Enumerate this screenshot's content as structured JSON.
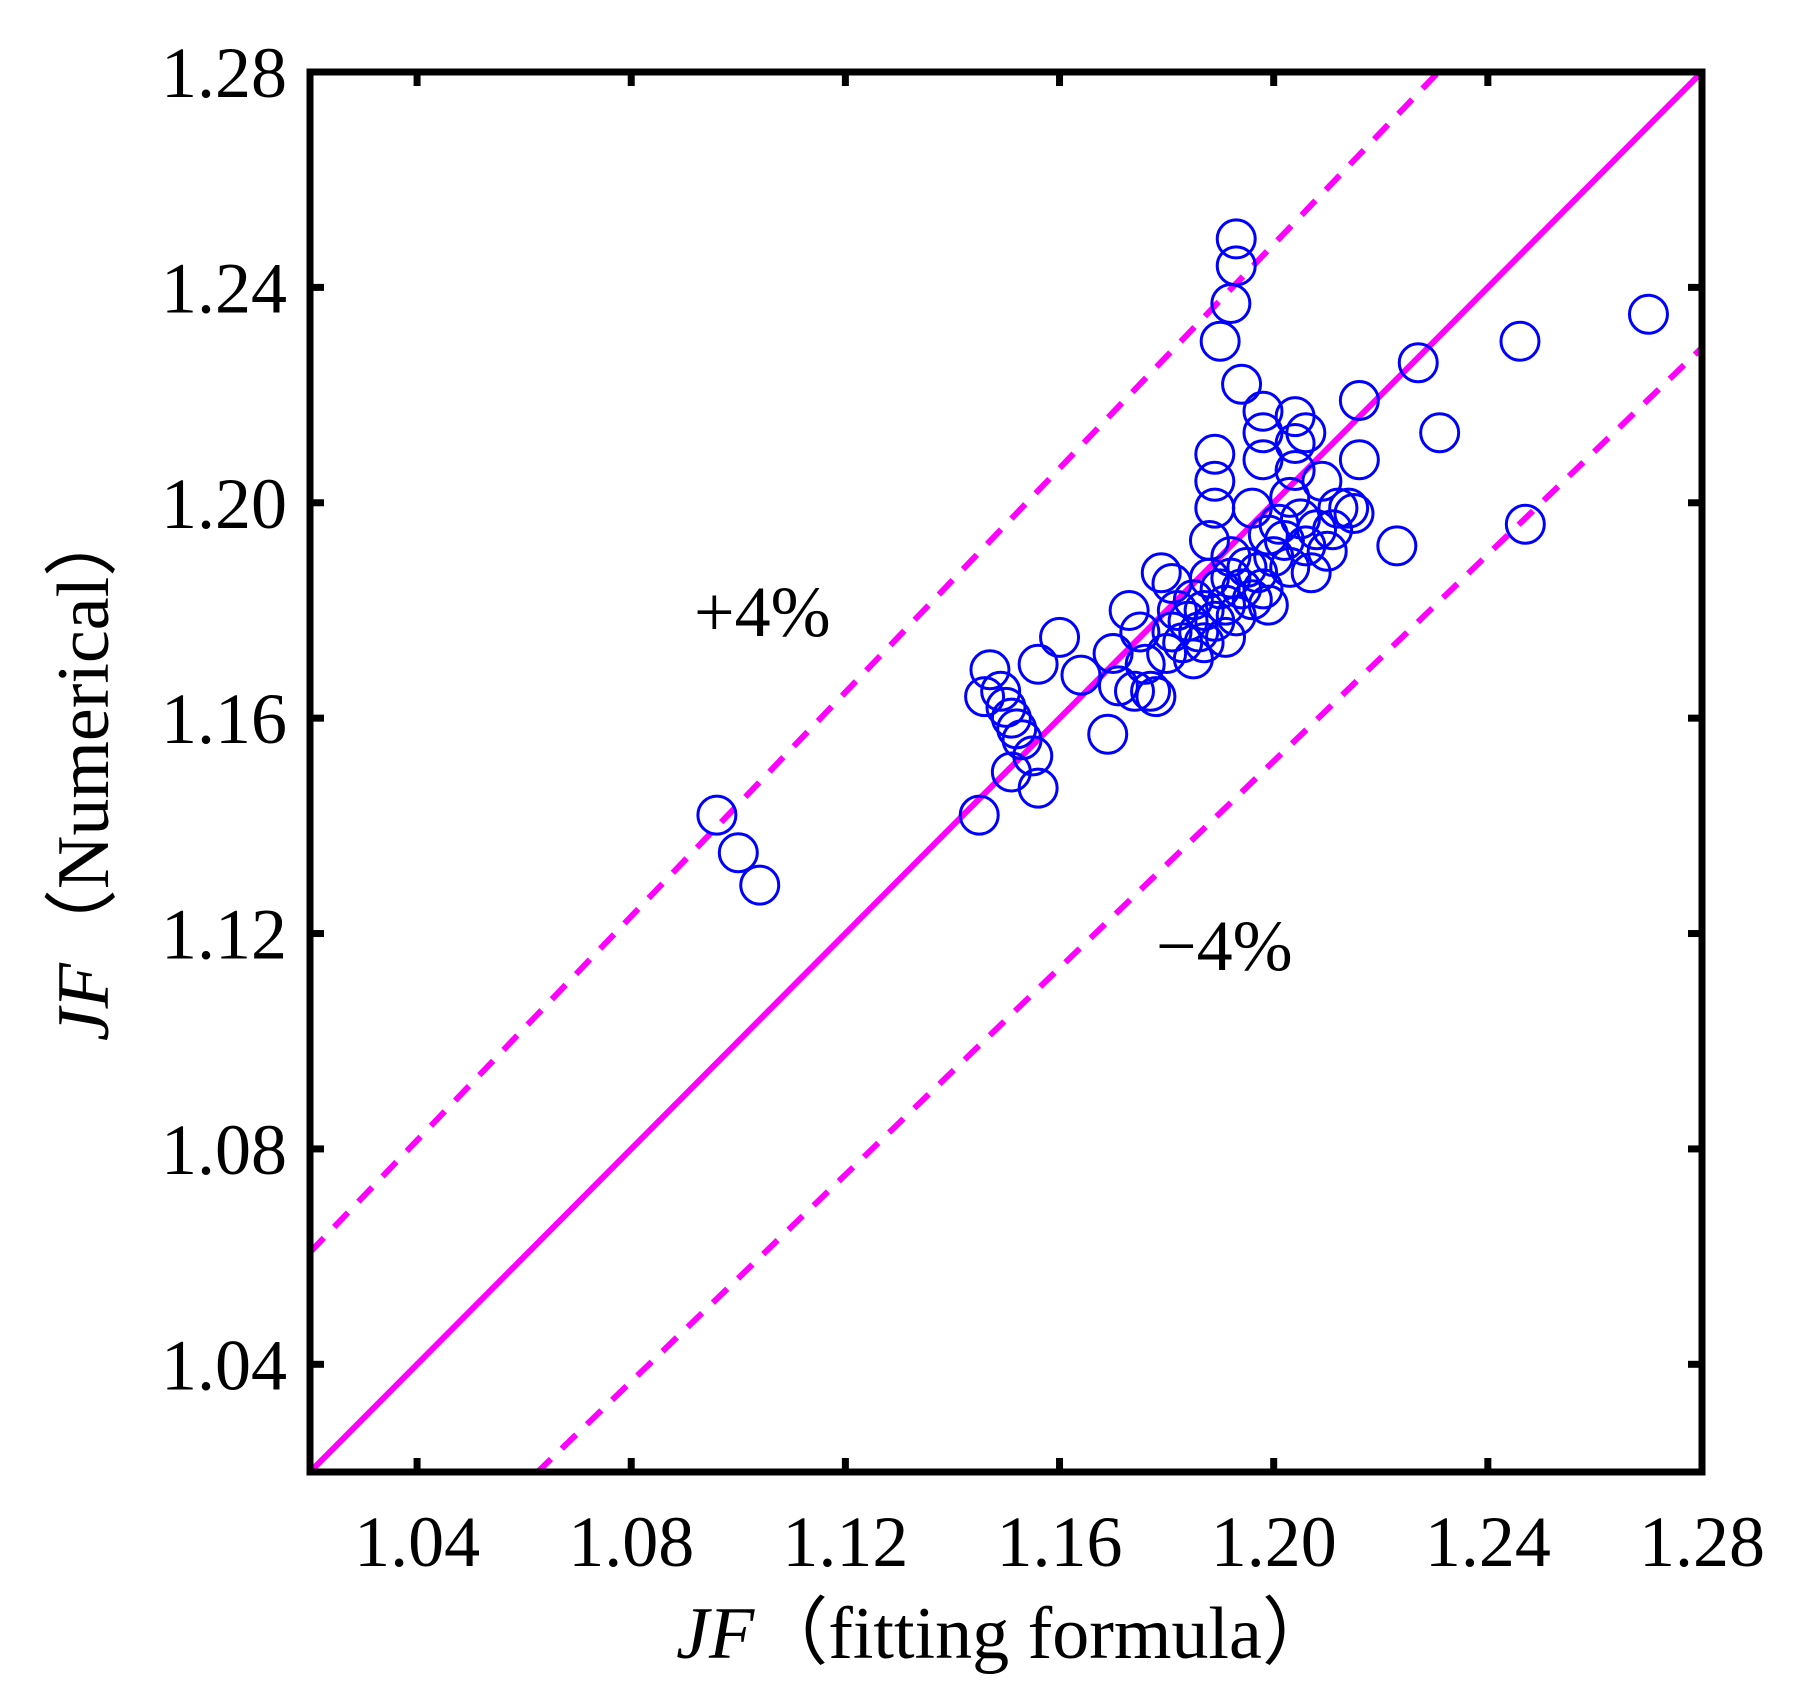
{
  "chart_data": {
    "type": "scatter",
    "xlabel": {
      "symbol": "JF",
      "text": "（fitting formula）"
    },
    "ylabel": {
      "symbol": "JF",
      "text": "（Numerical）"
    },
    "xlim": [
      1.02,
      1.28
    ],
    "ylim": [
      1.02,
      1.28
    ],
    "xticks": [
      1.04,
      1.08,
      1.12,
      1.16,
      1.2,
      1.24,
      1.28
    ],
    "yticks": [
      1.04,
      1.08,
      1.12,
      1.16,
      1.2,
      1.24,
      1.28
    ],
    "xtick_labels": [
      "1.04",
      "1.08",
      "1.12",
      "1.16",
      "1.20",
      "1.24",
      "1.28"
    ],
    "ytick_labels": [
      "1.04",
      "1.08",
      "1.12",
      "1.16",
      "1.20",
      "1.24",
      "1.28"
    ],
    "grid": false,
    "colors": {
      "points": "#0000ff",
      "lines": "#ff00ff",
      "axes": "#000000"
    },
    "reference_lines": [
      {
        "name": "identity",
        "style": "solid",
        "slope": 1.0
      },
      {
        "name": "plus-4-percent",
        "style": "dashed",
        "slope": 1.04
      },
      {
        "name": "minus-4-percent",
        "style": "dashed",
        "slope": 0.96
      }
    ],
    "annotations": {
      "plus": "+4%",
      "minus": "−4%"
    },
    "series": [
      {
        "name": "JF samples",
        "marker": "open-circle",
        "points": [
          [
            1.096,
            1.142
          ],
          [
            1.1,
            1.135
          ],
          [
            1.104,
            1.129
          ],
          [
            1.145,
            1.142
          ],
          [
            1.146,
            1.164
          ],
          [
            1.147,
            1.169
          ],
          [
            1.149,
            1.165
          ],
          [
            1.15,
            1.162
          ],
          [
            1.151,
            1.16
          ],
          [
            1.152,
            1.158
          ],
          [
            1.151,
            1.15
          ],
          [
            1.153,
            1.156
          ],
          [
            1.155,
            1.153
          ],
          [
            1.156,
            1.147
          ],
          [
            1.156,
            1.17
          ],
          [
            1.16,
            1.175
          ],
          [
            1.164,
            1.168
          ],
          [
            1.169,
            1.157
          ],
          [
            1.17,
            1.172
          ],
          [
            1.171,
            1.166
          ],
          [
            1.173,
            1.18
          ],
          [
            1.174,
            1.165
          ],
          [
            1.175,
            1.176
          ],
          [
            1.176,
            1.17
          ],
          [
            1.177,
            1.165
          ],
          [
            1.178,
            1.164
          ],
          [
            1.179,
            1.187
          ],
          [
            1.18,
            1.172
          ],
          [
            1.181,
            1.185
          ],
          [
            1.181,
            1.176
          ],
          [
            1.182,
            1.18
          ],
          [
            1.183,
            1.174
          ],
          [
            1.184,
            1.178
          ],
          [
            1.185,
            1.182
          ],
          [
            1.185,
            1.171
          ],
          [
            1.186,
            1.176
          ],
          [
            1.187,
            1.18
          ],
          [
            1.187,
            1.174
          ],
          [
            1.188,
            1.193
          ],
          [
            1.188,
            1.186
          ],
          [
            1.189,
            1.178
          ],
          [
            1.189,
            1.209
          ],
          [
            1.189,
            1.204
          ],
          [
            1.189,
            1.199
          ],
          [
            1.19,
            1.23
          ],
          [
            1.19,
            1.184
          ],
          [
            1.191,
            1.175
          ],
          [
            1.191,
            1.181
          ],
          [
            1.192,
            1.19
          ],
          [
            1.192,
            1.237
          ],
          [
            1.192,
            1.186
          ],
          [
            1.193,
            1.249
          ],
          [
            1.193,
            1.244
          ],
          [
            1.193,
            1.179
          ],
          [
            1.194,
            1.222
          ],
          [
            1.194,
            1.184
          ],
          [
            1.195,
            1.188
          ],
          [
            1.196,
            1.199
          ],
          [
            1.196,
            1.182
          ],
          [
            1.197,
            1.187
          ],
          [
            1.198,
            1.217
          ],
          [
            1.198,
            1.208
          ],
          [
            1.198,
            1.213
          ],
          [
            1.198,
            1.184
          ],
          [
            1.199,
            1.194
          ],
          [
            1.199,
            1.181
          ],
          [
            1.2,
            1.19
          ],
          [
            1.201,
            1.196
          ],
          [
            1.202,
            1.193
          ],
          [
            1.203,
            1.201
          ],
          [
            1.203,
            1.188
          ],
          [
            1.204,
            1.216
          ],
          [
            1.204,
            1.211
          ],
          [
            1.204,
            1.206
          ],
          [
            1.205,
            1.197
          ],
          [
            1.206,
            1.192
          ],
          [
            1.206,
            1.213
          ],
          [
            1.207,
            1.187
          ],
          [
            1.208,
            1.195
          ],
          [
            1.209,
            1.204
          ],
          [
            1.21,
            1.191
          ],
          [
            1.211,
            1.195
          ],
          [
            1.212,
            1.199
          ],
          [
            1.214,
            1.199
          ],
          [
            1.215,
            1.198
          ],
          [
            1.216,
            1.219
          ],
          [
            1.216,
            1.208
          ],
          [
            1.223,
            1.192
          ],
          [
            1.227,
            1.226
          ],
          [
            1.231,
            1.213
          ],
          [
            1.246,
            1.23
          ],
          [
            1.247,
            1.196
          ],
          [
            1.27,
            1.235
          ]
        ]
      }
    ]
  }
}
